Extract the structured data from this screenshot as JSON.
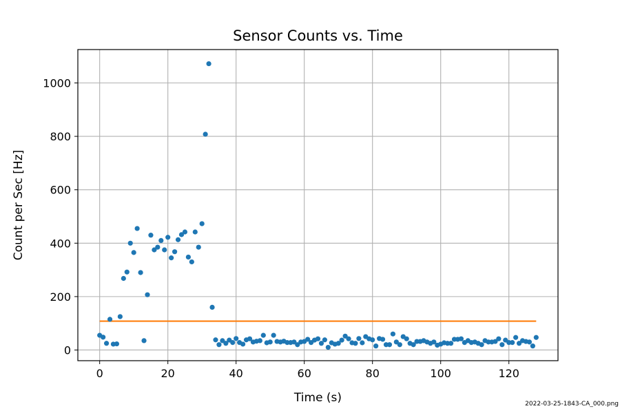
{
  "chart_data": {
    "type": "scatter",
    "title": "Sensor Counts vs. Time",
    "xlabel": "Time (s)",
    "ylabel": "Count per Sec [Hz]",
    "xlim": [
      -6.4,
      134.4
    ],
    "ylim": [
      -40,
      1125
    ],
    "xticks": [
      0,
      20,
      40,
      60,
      80,
      100,
      120
    ],
    "yticks": [
      0,
      200,
      400,
      600,
      800,
      1000
    ],
    "grid": true,
    "colors": {
      "points": "#1f77b4",
      "line": "#ff7f0e",
      "grid": "#b0b0b0"
    },
    "series": [
      {
        "type": "scatter",
        "x": [
          0,
          1,
          2,
          3,
          4,
          5,
          6,
          7,
          8,
          9,
          10,
          11,
          12,
          13,
          14,
          15,
          16,
          17,
          18,
          19,
          20,
          21,
          22,
          23,
          24,
          25,
          26,
          27,
          28,
          29,
          30,
          31,
          32,
          33,
          34,
          35,
          36,
          37,
          38,
          39,
          40,
          41,
          42,
          43,
          44,
          45,
          46,
          47,
          48,
          49,
          50,
          51,
          52,
          53,
          54,
          55,
          56,
          57,
          58,
          59,
          60,
          61,
          62,
          63,
          64,
          65,
          66,
          67,
          68,
          69,
          70,
          71,
          72,
          73,
          74,
          75,
          76,
          77,
          78,
          79,
          80,
          81,
          82,
          83,
          84,
          85,
          86,
          87,
          88,
          89,
          90,
          91,
          92,
          93,
          94,
          95,
          96,
          97,
          98,
          99,
          100,
          101,
          102,
          103,
          104,
          105,
          106,
          107,
          108,
          109,
          110,
          111,
          112,
          113,
          114,
          115,
          116,
          117,
          118,
          119,
          120,
          121,
          122,
          123,
          124,
          125,
          126,
          127,
          128
        ],
        "y": [
          55,
          48,
          25,
          115,
          22,
          23,
          125,
          268,
          292,
          400,
          365,
          455,
          290,
          35,
          207,
          430,
          375,
          385,
          410,
          375,
          422,
          345,
          368,
          413,
          432,
          442,
          348,
          330,
          442,
          385,
          473,
          808,
          1072,
          160,
          38,
          20,
          35,
          25,
          37,
          28,
          43,
          28,
          22,
          38,
          42,
          30,
          33,
          35,
          55,
          27,
          30,
          55,
          32,
          30,
          33,
          28,
          28,
          30,
          20,
          30,
          32,
          40,
          28,
          37,
          42,
          25,
          38,
          10,
          27,
          22,
          25,
          37,
          52,
          42,
          27,
          25,
          43,
          27,
          50,
          42,
          38,
          15,
          43,
          40,
          20,
          20,
          60,
          30,
          20,
          50,
          42,
          25,
          20,
          32,
          32,
          35,
          30,
          25,
          30,
          18,
          22,
          27,
          25,
          25,
          40,
          40,
          42,
          28,
          35,
          28,
          30,
          25,
          20,
          35,
          30,
          30,
          32,
          42,
          20,
          37,
          28,
          28,
          47,
          25,
          35,
          32,
          30,
          15,
          47
        ]
      },
      {
        "type": "line",
        "x": [
          0,
          128
        ],
        "y": [
          108,
          108
        ]
      }
    ]
  },
  "footer_text": "2022-03-25-1843-CA_000.png"
}
